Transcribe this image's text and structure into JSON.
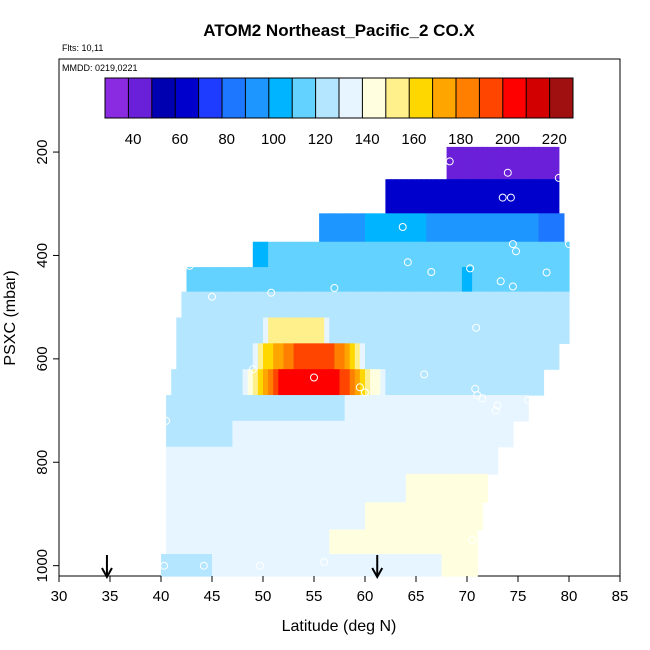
{
  "chart_data": {
    "type": "heatmap",
    "title": "ATOM2 Northeast_Pacific_2 CO.X",
    "subtitle_flights": "Flts: 10,11",
    "subtitle_dates": "MMDD: 0219,0221",
    "xlabel": "Latitude (deg N)",
    "ylabel": "PSXC (mbar)",
    "xlim": [
      30,
      85
    ],
    "ylim": [
      1020,
      20
    ],
    "y_inverted": true,
    "x_ticks": [
      "30",
      "35",
      "40",
      "45",
      "50",
      "55",
      "60",
      "65",
      "70",
      "75",
      "80",
      "85"
    ],
    "y_ticks": [
      "200",
      "400",
      "600",
      "800",
      "1000"
    ],
    "colorbar": {
      "min": 28,
      "max": 228,
      "ticks": [
        "40",
        "60",
        "80",
        "100",
        "120",
        "140",
        "160",
        "180",
        "200",
        "220"
      ],
      "colors": [
        "#8a2be2",
        "#6a1fd8",
        "#0000b0",
        "#0000cd",
        "#1e3cff",
        "#1e78ff",
        "#1e96ff",
        "#00b4ff",
        "#64d2ff",
        "#b4e6ff",
        "#e6f5ff",
        "#ffffe0",
        "#fff08c",
        "#ffd700",
        "#ffa500",
        "#ff7f00",
        "#ff4500",
        "#ff0000",
        "#d20000",
        "#a01010"
      ]
    },
    "grid": false,
    "layers": [
      {
        "p": 215,
        "lat_min": 68.0,
        "lat_max": 79.0,
        "profile": [
          [
            68,
            40
          ],
          [
            79,
            40
          ]
        ]
      },
      {
        "p": 290,
        "lat_min": 62.0,
        "lat_max": 79.0,
        "profile": [
          [
            62,
            64
          ],
          [
            70,
            60
          ],
          [
            79,
            60
          ]
        ]
      },
      {
        "p": 347,
        "lat_min": 55.5,
        "lat_max": 79.5,
        "profile": [
          [
            55.5,
            88
          ],
          [
            62,
            102
          ],
          [
            68,
            96
          ],
          [
            74,
            90
          ],
          [
            79.5,
            86
          ]
        ]
      },
      {
        "p": 400,
        "lat_min": 49.0,
        "lat_max": 80.0,
        "profile": [
          [
            49,
            98
          ],
          [
            51,
            112
          ],
          [
            56,
            116
          ],
          [
            66,
            116
          ],
          [
            70,
            112
          ],
          [
            75,
            110
          ],
          [
            80,
            114
          ]
        ]
      },
      {
        "p": 445,
        "lat_min": 42.5,
        "lat_max": 80.0,
        "profile": [
          [
            42.5,
            116
          ],
          [
            60,
            118
          ],
          [
            69,
            116
          ],
          [
            70,
            102
          ],
          [
            71,
            118
          ],
          [
            80,
            116
          ]
        ]
      },
      {
        "p": 495,
        "lat_min": 42.0,
        "lat_max": 80.0,
        "profile": [
          [
            42,
            120
          ],
          [
            80,
            118
          ]
        ]
      },
      {
        "p": 545,
        "lat_min": 41.5,
        "lat_max": 80.0,
        "profile": [
          [
            41.5,
            122
          ],
          [
            50,
            124
          ],
          [
            50.5,
            150
          ],
          [
            56,
            150
          ],
          [
            56.5,
            124
          ],
          [
            80,
            120
          ]
        ]
      },
      {
        "p": 595,
        "lat_min": 41.5,
        "lat_max": 79.0,
        "profile": [
          [
            41.5,
            122
          ],
          [
            49,
            126
          ],
          [
            50,
            160
          ],
          [
            53,
            190
          ],
          [
            57,
            190
          ],
          [
            59,
            160
          ],
          [
            60,
            126
          ],
          [
            79,
            124
          ]
        ]
      },
      {
        "p": 645,
        "lat_min": 41.0,
        "lat_max": 77.5,
        "profile": [
          [
            41,
            124
          ],
          [
            48,
            128
          ],
          [
            49.5,
            160
          ],
          [
            51,
            185
          ],
          [
            52,
            205
          ],
          [
            57,
            205
          ],
          [
            59,
            180
          ],
          [
            60.5,
            150
          ],
          [
            62,
            128
          ],
          [
            77.5,
            126
          ]
        ]
      },
      {
        "p": 695,
        "lat_min": 40.5,
        "lat_max": 76.0,
        "profile": [
          [
            40.5,
            126
          ],
          [
            76,
            130
          ]
        ]
      },
      {
        "p": 745,
        "lat_min": 40.5,
        "lat_max": 74.5,
        "profile": [
          [
            40.5,
            126
          ],
          [
            60,
            132
          ],
          [
            74.5,
            134
          ]
        ]
      },
      {
        "p": 795,
        "lat_min": 40.5,
        "lat_max": 73.0,
        "profile": [
          [
            40.5,
            128
          ],
          [
            60,
            134
          ],
          [
            73,
            138
          ]
        ]
      },
      {
        "p": 850,
        "lat_min": 40.5,
        "lat_max": 72.0,
        "profile": [
          [
            40.5,
            128
          ],
          [
            60,
            136
          ],
          [
            72,
            142
          ]
        ]
      },
      {
        "p": 905,
        "lat_min": 40.5,
        "lat_max": 71.5,
        "profile": [
          [
            40.5,
            128
          ],
          [
            60,
            138
          ],
          [
            71.5,
            146
          ]
        ]
      },
      {
        "p": 955,
        "lat_min": 40.5,
        "lat_max": 71.0,
        "profile": [
          [
            40.5,
            128
          ],
          [
            60,
            140
          ],
          [
            71,
            146
          ]
        ]
      },
      {
        "p": 1000,
        "lat_min": 40.0,
        "lat_max": 71.0,
        "profile": [
          [
            40,
            126
          ],
          [
            60,
            134
          ],
          [
            71,
            140
          ]
        ]
      }
    ],
    "sample_points": [
      [
        68.3,
        218
      ],
      [
        74.0,
        240
      ],
      [
        79.0,
        250
      ],
      [
        73.5,
        288
      ],
      [
        74.3,
        288
      ],
      [
        63.7,
        345
      ],
      [
        80.0,
        378
      ],
      [
        74.5,
        378
      ],
      [
        74.8,
        392
      ],
      [
        64.2,
        413
      ],
      [
        66.5,
        432
      ],
      [
        70.3,
        425
      ],
      [
        77.8,
        433
      ],
      [
        73.3,
        450
      ],
      [
        74.5,
        460
      ],
      [
        42.8,
        420
      ],
      [
        57.0,
        463
      ],
      [
        45.0,
        480
      ],
      [
        50.8,
        472
      ],
      [
        70.9,
        540
      ],
      [
        49.0,
        620
      ],
      [
        55.0,
        636
      ],
      [
        65.8,
        630
      ],
      [
        59.5,
        655
      ],
      [
        60.0,
        665
      ],
      [
        70.8,
        658
      ],
      [
        71.0,
        670
      ],
      [
        71.5,
        676
      ],
      [
        73.0,
        690
      ],
      [
        76.0,
        680
      ],
      [
        80.5,
        608
      ],
      [
        40.5,
        720
      ],
      [
        72.8,
        700
      ],
      [
        70.5,
        950
      ],
      [
        40.3,
        1000
      ],
      [
        44.2,
        1000
      ],
      [
        49.7,
        1000
      ],
      [
        56.0,
        993
      ]
    ],
    "arrows_lat": [
      34.7,
      61.2
    ]
  }
}
